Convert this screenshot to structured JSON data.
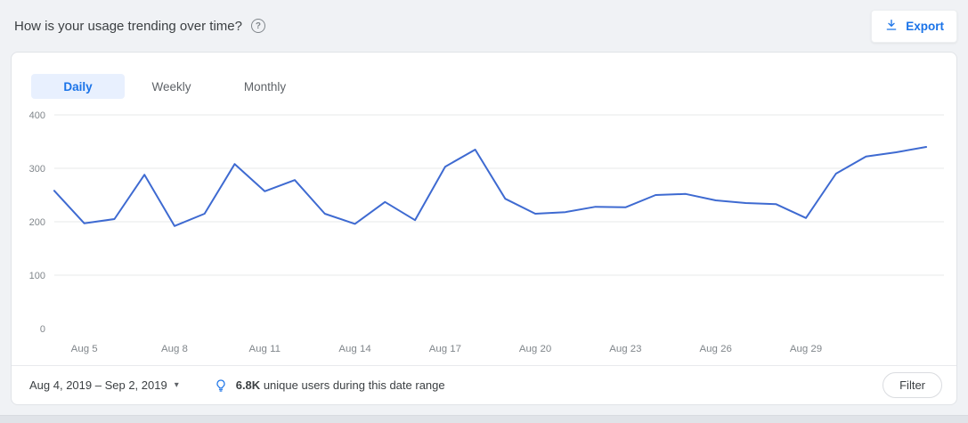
{
  "page": {
    "title": "How is your usage trending over time?"
  },
  "icons": {
    "help": "?",
    "dropdown_caret": "▾"
  },
  "toolbar": {
    "export_label": "Export"
  },
  "tabs": [
    {
      "label": "Daily",
      "active": true
    },
    {
      "label": "Weekly",
      "active": false
    },
    {
      "label": "Monthly",
      "active": false
    }
  ],
  "footer": {
    "date_range": "Aug 4, 2019 – Sep 2, 2019",
    "unique_users_count": "6.8K",
    "insight_suffix": "unique users during this date range",
    "filter_label": "Filter"
  },
  "colors": {
    "accent": "#1a73e8",
    "chart_line": "#3e6ad1",
    "active_tab_bg": "#e8f0fe"
  },
  "chart_data": {
    "type": "line",
    "x": [
      "Aug 4",
      "Aug 5",
      "Aug 6",
      "Aug 7",
      "Aug 8",
      "Aug 9",
      "Aug 10",
      "Aug 11",
      "Aug 12",
      "Aug 13",
      "Aug 14",
      "Aug 15",
      "Aug 16",
      "Aug 17",
      "Aug 18",
      "Aug 19",
      "Aug 20",
      "Aug 21",
      "Aug 22",
      "Aug 23",
      "Aug 24",
      "Aug 25",
      "Aug 26",
      "Aug 27",
      "Aug 28",
      "Aug 29",
      "Aug 30",
      "Aug 31",
      "Sep 1",
      "Sep 2"
    ],
    "values": [
      258,
      197,
      205,
      288,
      192,
      215,
      308,
      257,
      278,
      215,
      196,
      237,
      203,
      303,
      335,
      243,
      215,
      218,
      228,
      227,
      250,
      252,
      240,
      235,
      233,
      207,
      290,
      322,
      330,
      340
    ],
    "x_ticks": [
      {
        "label": "Aug 5",
        "index": 1
      },
      {
        "label": "Aug 8",
        "index": 4
      },
      {
        "label": "Aug 11",
        "index": 7
      },
      {
        "label": "Aug 14",
        "index": 10
      },
      {
        "label": "Aug 17",
        "index": 13
      },
      {
        "label": "Aug 20",
        "index": 16
      },
      {
        "label": "Aug 23",
        "index": 19
      },
      {
        "label": "Aug 26",
        "index": 22
      },
      {
        "label": "Aug 29",
        "index": 25
      }
    ],
    "y_ticks": [
      0,
      100,
      200,
      300,
      400
    ],
    "ylim": [
      0,
      400
    ],
    "grid": "horizontal",
    "legend": "none",
    "title": "How is your usage trending over time?"
  }
}
